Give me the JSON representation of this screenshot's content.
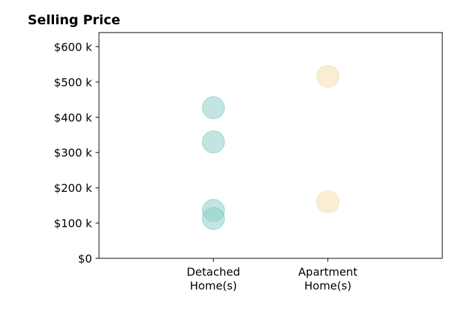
{
  "chart_data": {
    "type": "scatter",
    "title": "Selling Price",
    "xlabel": "",
    "ylabel": "",
    "categories": [
      [
        "Detached",
        "Home(s)"
      ],
      [
        "Apartment",
        "Home(s)"
      ]
    ],
    "xlim": [
      0,
      3
    ],
    "ylim": [
      0,
      640000
    ],
    "yticks": [
      0,
      100000,
      200000,
      300000,
      400000,
      500000,
      600000
    ],
    "ytick_labels": [
      "$0",
      "$100 k",
      "$200 k",
      "$300 k",
      "$400 k",
      "$500 k",
      "$600 k"
    ],
    "grid": false,
    "series": [
      {
        "category_index": 0,
        "color": "#8fd0c8",
        "edge_color": "#6ec1b6",
        "opacity": 0.55,
        "values": [
          427000,
          330000,
          136000,
          113000
        ]
      },
      {
        "category_index": 1,
        "color": "#f5e2b8",
        "edge_color": "#efd6a3",
        "opacity": 0.6,
        "values": [
          516000,
          160000
        ]
      }
    ]
  }
}
